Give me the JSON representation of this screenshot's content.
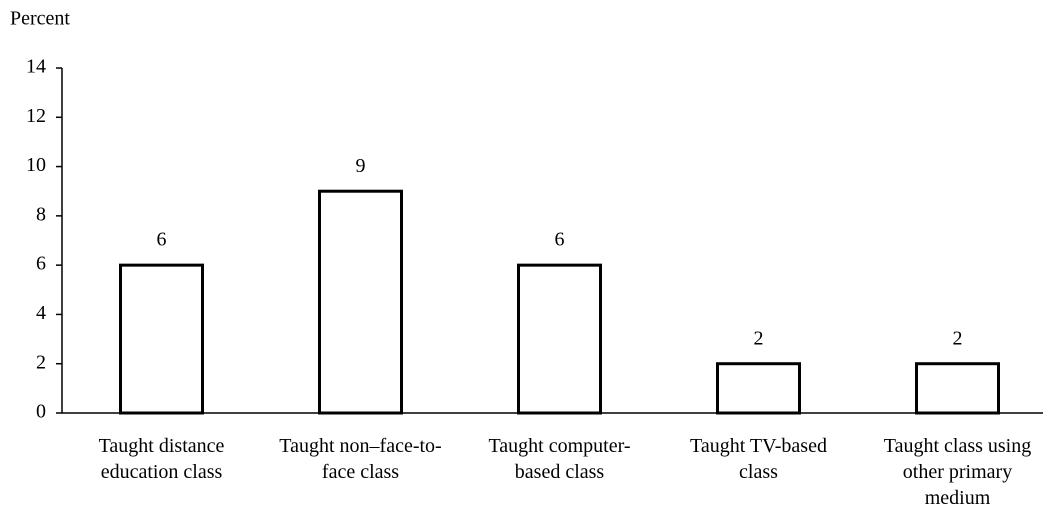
{
  "chart_data": {
    "type": "bar",
    "ylabel": "Percent",
    "categories": [
      "Taught distance education class",
      "Taught non–face-to-face class",
      "Taught computer-based class",
      "Taught TV-based class",
      "Taught class using other primary medium"
    ],
    "values": [
      6,
      9,
      6,
      2,
      2
    ],
    "color": "#ffffff",
    "ylim": [
      0,
      14
    ],
    "yticks": [
      0,
      2,
      4,
      6,
      8,
      10,
      12,
      14
    ],
    "grid": false
  }
}
